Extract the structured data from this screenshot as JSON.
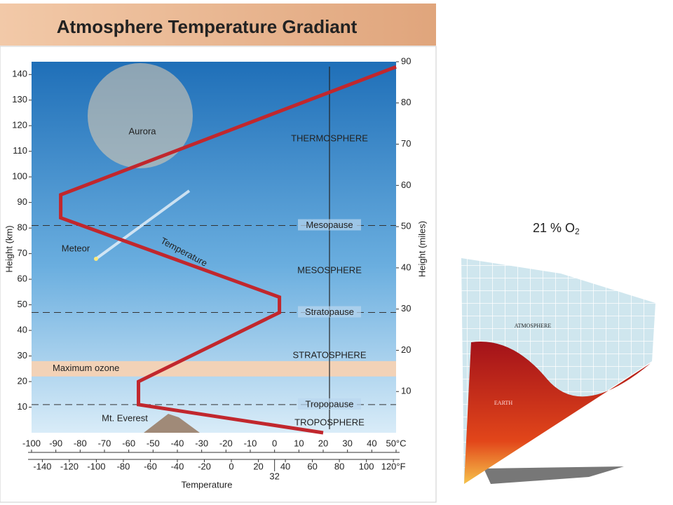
{
  "chart_data": {
    "type": "line",
    "title": "Atmosphere Temperature Gradiant",
    "xlabel": "Temperature",
    "ylabel": "Height (km)",
    "y2label": "Height (miles)",
    "x": [
      20,
      -56,
      -56,
      2,
      2,
      -88,
      -88,
      50
    ],
    "series": [
      {
        "name": "Temperature",
        "color": "#c1272d",
        "values": [
          0,
          11,
          20,
          47,
          53,
          84,
          93,
          143
        ]
      }
    ],
    "xlim": [
      -100,
      50
    ],
    "xticks": [
      -100,
      -90,
      -80,
      -70,
      -60,
      -50,
      -40,
      -30,
      -20,
      -10,
      0,
      10,
      20,
      30,
      40,
      {
        "value": 50,
        "label": "50°C"
      }
    ],
    "x2lim": [
      -148,
      122
    ],
    "x2ticks": [
      -140,
      -120,
      -100,
      -80,
      -60,
      -40,
      -20,
      0,
      20,
      40,
      60,
      80,
      100,
      {
        "value": 120,
        "label": "120°F"
      },
      32
    ],
    "ylim": [
      0,
      145
    ],
    "yticks": [
      10,
      20,
      30,
      40,
      50,
      60,
      70,
      80,
      90,
      100,
      110,
      120,
      130,
      140
    ],
    "y2lim": [
      0,
      90
    ],
    "y2ticks": [
      10,
      20,
      30,
      40,
      50,
      60,
      70,
      80,
      90
    ],
    "boundaries": [
      {
        "label": "Mesopause",
        "value": 81
      },
      {
        "label": "Stratopause",
        "value": 47
      },
      {
        "label": "Tropopause",
        "value": 11
      }
    ],
    "bands": [
      {
        "label": "Maximum ozone",
        "range": [
          22,
          28
        ]
      }
    ],
    "layers": [
      "THERMOSPHERE",
      "MESOSPHERE",
      "STRATOSPHERE",
      "TROPOSPHERE"
    ],
    "annotations": [
      "Aurora",
      "Meteor",
      "Mt. Everest"
    ]
  },
  "side_note": {
    "text": "21 % O",
    "subscript": "2"
  },
  "cone": {
    "labels": [
      "ATMOSPHERE",
      "EARTH"
    ]
  }
}
